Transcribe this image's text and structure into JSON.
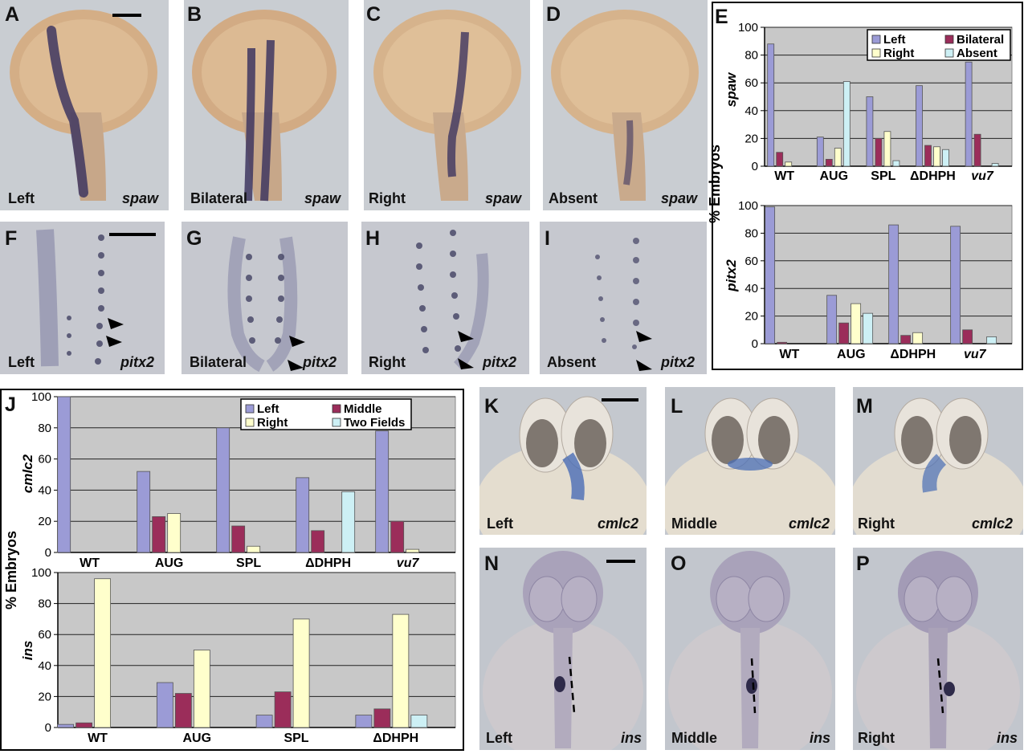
{
  "panels": {
    "A": {
      "label": "A",
      "caption": "Left",
      "gene": "spaw"
    },
    "B": {
      "label": "B",
      "caption": "Bilateral",
      "gene": "spaw"
    },
    "C": {
      "label": "C",
      "caption": "Right",
      "gene": "spaw"
    },
    "D": {
      "label": "D",
      "caption": "Absent",
      "gene": "spaw"
    },
    "E": {
      "label": "E"
    },
    "F": {
      "label": "F",
      "caption": "Left",
      "gene": "pitx2"
    },
    "G": {
      "label": "G",
      "caption": "Bilateral",
      "gene": "pitx2"
    },
    "H": {
      "label": "H",
      "caption": "Right",
      "gene": "pitx2"
    },
    "I": {
      "label": "I",
      "caption": "Absent",
      "gene": "pitx2"
    },
    "J": {
      "label": "J"
    },
    "K": {
      "label": "K",
      "caption": "Left",
      "gene": "cmlc2"
    },
    "L": {
      "label": "L",
      "caption": "Middle",
      "gene": "cmlc2"
    },
    "M": {
      "label": "M",
      "caption": "Right",
      "gene": "cmlc2"
    },
    "N": {
      "label": "N",
      "caption": "Left",
      "gene": "ins"
    },
    "O": {
      "label": "O",
      "caption": "Middle",
      "gene": "ins"
    },
    "P": {
      "label": "P",
      "caption": "Right",
      "gene": "ins"
    }
  },
  "colors": {
    "left": "#9b9bd6",
    "bilateral": "#9b2d5a",
    "right": "#ffffcc",
    "absent": "#cdf0f5",
    "plot_bg": "#c8c8c8"
  },
  "chart_data": [
    {
      "id": "E-spaw",
      "type": "bar",
      "ylabel": "spaw",
      "shared_ylabel": "% Embryos",
      "categories": [
        "WT",
        "AUG",
        "SPL",
        "ΔDHPH",
        "vu7"
      ],
      "italic_categories": [
        "vu7"
      ],
      "ylim": [
        0,
        100
      ],
      "yticks": [
        0,
        20,
        40,
        60,
        80,
        100
      ],
      "grid": true,
      "legend": "top-right",
      "series": [
        {
          "name": "Left",
          "color": "#9b9bd6",
          "values": [
            88,
            21,
            50,
            58,
            75
          ]
        },
        {
          "name": "Bilateral",
          "color": "#9b2d5a",
          "values": [
            10,
            5,
            20,
            15,
            23
          ]
        },
        {
          "name": "Right",
          "color": "#ffffcc",
          "values": [
            3,
            13,
            25,
            14,
            0
          ]
        },
        {
          "name": "Absent",
          "color": "#cdf0f5",
          "values": [
            0,
            61,
            4,
            12,
            2
          ]
        }
      ]
    },
    {
      "id": "E-pitx2",
      "type": "bar",
      "ylabel": "pitx2",
      "categories": [
        "WT",
        "AUG",
        "ΔDHPH",
        "vu7"
      ],
      "italic_categories": [
        "vu7"
      ],
      "ylim": [
        0,
        100
      ],
      "yticks": [
        0,
        20,
        40,
        60,
        80,
        100
      ],
      "grid": true,
      "series": [
        {
          "name": "Left",
          "color": "#9b9bd6",
          "values": [
            99,
            35,
            86,
            85
          ]
        },
        {
          "name": "Bilateral",
          "color": "#9b2d5a",
          "values": [
            1,
            15,
            6,
            10
          ]
        },
        {
          "name": "Right",
          "color": "#ffffcc",
          "values": [
            0,
            29,
            8,
            0
          ]
        },
        {
          "name": "Absent",
          "color": "#cdf0f5",
          "values": [
            0,
            22,
            0,
            5
          ]
        }
      ]
    },
    {
      "id": "J-cmlc2",
      "type": "bar",
      "ylabel": "cmlc2",
      "shared_ylabel": "% Embryos",
      "categories": [
        "WT",
        "AUG",
        "SPL",
        "ΔDHPH",
        "vu7"
      ],
      "italic_categories": [
        "vu7"
      ],
      "ylim": [
        0,
        100
      ],
      "yticks": [
        0,
        20,
        40,
        60,
        80,
        100
      ],
      "grid": true,
      "legend": "top-right",
      "series": [
        {
          "name": "Left",
          "color": "#9b9bd6",
          "values": [
            100,
            52,
            80,
            48,
            78
          ]
        },
        {
          "name": "Middle",
          "color": "#9b2d5a",
          "values": [
            0,
            23,
            17,
            14,
            20
          ]
        },
        {
          "name": "Right",
          "color": "#ffffcc",
          "values": [
            0,
            25,
            4,
            0,
            2
          ]
        },
        {
          "name": "Two Fields",
          "color": "#cdf0f5",
          "values": [
            0,
            0,
            0,
            39,
            0
          ]
        }
      ]
    },
    {
      "id": "J-ins",
      "type": "bar",
      "ylabel": "ins",
      "categories": [
        "WT",
        "AUG",
        "SPL",
        "ΔDHPH"
      ],
      "italic_categories": [],
      "ylim": [
        0,
        100
      ],
      "yticks": [
        0,
        20,
        40,
        60,
        80,
        100
      ],
      "grid": true,
      "series": [
        {
          "name": "Left",
          "color": "#9b9bd6",
          "values": [
            2,
            29,
            8,
            8
          ]
        },
        {
          "name": "Middle",
          "color": "#9b2d5a",
          "values": [
            3,
            22,
            23,
            12
          ]
        },
        {
          "name": "Right",
          "color": "#ffffcc",
          "values": [
            96,
            50,
            70,
            73
          ]
        },
        {
          "name": "Two Fields",
          "color": "#cdf0f5",
          "values": [
            0,
            0,
            0,
            8
          ]
        }
      ]
    }
  ]
}
